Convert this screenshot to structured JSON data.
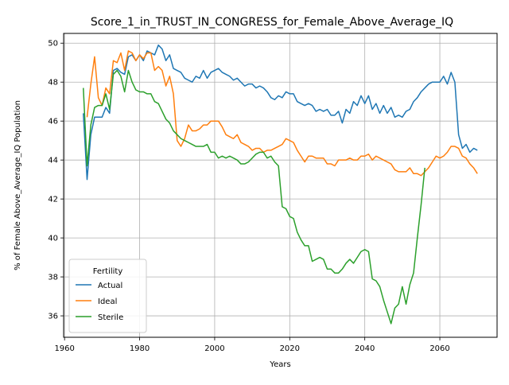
{
  "chart_data": {
    "type": "line",
    "title": "Score_1_in_TRUST_IN_CONGRESS_for_Female_Above_Average_IQ",
    "xlabel": "Years",
    "ylabel": "% of Female Above_Average_IQ Population",
    "xlim": [
      1959.75,
      2075.25
    ],
    "ylim": [
      34.9,
      50.5
    ],
    "xticks": [
      1960,
      1980,
      2000,
      2020,
      2040,
      2060
    ],
    "yticks": [
      36,
      38,
      40,
      42,
      44,
      46,
      48,
      50
    ],
    "grid": true,
    "legend": {
      "title": "Fertility",
      "placement": "lower-left"
    },
    "series": [
      {
        "name": "Actual",
        "color": "#1f77b4",
        "x": [
          1965,
          1966,
          1967,
          1968,
          1969,
          1970,
          1971,
          1972,
          1973,
          1974,
          1975,
          1976,
          1977,
          1978,
          1979,
          1980,
          1981,
          1982,
          1983,
          1984,
          1985,
          1986,
          1987,
          1988,
          1989,
          1990,
          1991,
          1992,
          1993,
          1994,
          1995,
          1996,
          1997,
          1998,
          1999,
          2000,
          2001,
          2002,
          2003,
          2004,
          2005,
          2006,
          2007,
          2008,
          2009,
          2010,
          2011,
          2012,
          2013,
          2014,
          2015,
          2016,
          2017,
          2018,
          2019,
          2020,
          2021,
          2022,
          2023,
          2024,
          2025,
          2026,
          2027,
          2028,
          2029,
          2030,
          2031,
          2032,
          2033,
          2034,
          2035,
          2036,
          2037,
          2038,
          2039,
          2040,
          2041,
          2042,
          2043,
          2044,
          2045,
          2046,
          2047,
          2048,
          2049,
          2050,
          2051,
          2052,
          2053,
          2054,
          2055,
          2056,
          2057,
          2058,
          2059,
          2060,
          2061,
          2062,
          2063,
          2064,
          2065,
          2066,
          2067,
          2068,
          2069,
          2070
        ],
        "values": [
          46.4,
          43.0,
          45.3,
          46.2,
          46.2,
          46.2,
          46.7,
          46.4,
          48.6,
          48.7,
          48.5,
          48.4,
          49.3,
          49.4,
          49.1,
          49.4,
          49.1,
          49.6,
          49.5,
          49.4,
          49.9,
          49.7,
          49.1,
          49.4,
          48.7,
          48.6,
          48.5,
          48.2,
          48.1,
          48.0,
          48.3,
          48.2,
          48.6,
          48.2,
          48.5,
          48.6,
          48.7,
          48.5,
          48.4,
          48.3,
          48.1,
          48.2,
          48.0,
          47.8,
          47.9,
          47.9,
          47.7,
          47.8,
          47.7,
          47.5,
          47.2,
          47.1,
          47.3,
          47.2,
          47.5,
          47.4,
          47.4,
          47.0,
          46.9,
          46.8,
          46.9,
          46.8,
          46.5,
          46.6,
          46.5,
          46.6,
          46.3,
          46.3,
          46.5,
          45.9,
          46.6,
          46.4,
          47.0,
          46.8,
          47.3,
          46.9,
          47.3,
          46.6,
          46.9,
          46.4,
          46.8,
          46.4,
          46.7,
          46.2,
          46.3,
          46.2,
          46.5,
          46.6,
          47.0,
          47.2,
          47.5,
          47.7,
          47.9,
          48.0,
          48.0,
          48.0,
          48.3,
          47.9,
          48.5,
          48.0,
          45.3,
          44.6,
          44.8,
          44.4,
          44.6,
          44.5
        ]
      },
      {
        "name": "Ideal",
        "color": "#ff7f0e",
        "x": [
          1966,
          1967,
          1968,
          1969,
          1970,
          1971,
          1972,
          1973,
          1974,
          1975,
          1976,
          1977,
          1978,
          1979,
          1980,
          1981,
          1982,
          1983,
          1984,
          1985,
          1986,
          1987,
          1988,
          1989,
          1990,
          1991,
          1992,
          1993,
          1994,
          1995,
          1996,
          1997,
          1998,
          1999,
          2000,
          2001,
          2002,
          2003,
          2004,
          2005,
          2006,
          2007,
          2008,
          2009,
          2010,
          2011,
          2012,
          2013,
          2014,
          2015,
          2016,
          2017,
          2018,
          2019,
          2020,
          2021,
          2022,
          2023,
          2024,
          2025,
          2026,
          2027,
          2028,
          2029,
          2030,
          2031,
          2032,
          2033,
          2034,
          2035,
          2036,
          2037,
          2038,
          2039,
          2040,
          2041,
          2042,
          2043,
          2044,
          2045,
          2046,
          2047,
          2048,
          2049,
          2050,
          2051,
          2052,
          2053,
          2054,
          2055,
          2056,
          2057,
          2058,
          2059,
          2060,
          2061,
          2062,
          2063,
          2064,
          2065,
          2066,
          2067,
          2068,
          2069,
          2070
        ],
        "values": [
          46.2,
          47.9,
          49.3,
          47.2,
          46.8,
          47.7,
          47.4,
          49.1,
          49.0,
          49.5,
          48.6,
          49.6,
          49.5,
          49.1,
          49.4,
          49.2,
          49.5,
          49.5,
          48.6,
          48.8,
          48.6,
          47.8,
          48.3,
          47.4,
          45.0,
          44.7,
          45.1,
          45.8,
          45.5,
          45.5,
          45.6,
          45.8,
          45.8,
          46.0,
          46.0,
          46.0,
          45.7,
          45.3,
          45.2,
          45.1,
          45.3,
          44.9,
          44.8,
          44.7,
          44.5,
          44.6,
          44.6,
          44.4,
          44.5,
          44.5,
          44.6,
          44.7,
          44.8,
          45.1,
          45.0,
          44.9,
          44.5,
          44.2,
          43.9,
          44.2,
          44.2,
          44.1,
          44.1,
          44.1,
          43.8,
          43.8,
          43.7,
          44.0,
          44.0,
          44.0,
          44.1,
          44.0,
          44.0,
          44.2,
          44.2,
          44.3,
          44.0,
          44.2,
          44.1,
          44.0,
          43.9,
          43.8,
          43.5,
          43.4,
          43.4,
          43.4,
          43.6,
          43.3,
          43.3,
          43.2,
          43.4,
          43.6,
          43.9,
          44.2,
          44.1,
          44.2,
          44.4,
          44.7,
          44.7,
          44.6,
          44.2,
          44.1,
          43.8,
          43.6,
          43.3
        ]
      },
      {
        "name": "Sterile",
        "color": "#2ca02c",
        "x": [
          1965,
          1966,
          1967,
          1968,
          1969,
          1970,
          1971,
          1972,
          1973,
          1974,
          1975,
          1976,
          1977,
          1978,
          1979,
          1980,
          1981,
          1982,
          1983,
          1984,
          1985,
          1986,
          1987,
          1988,
          1989,
          1990,
          1991,
          1992,
          1993,
          1994,
          1995,
          1996,
          1997,
          1998,
          1999,
          2000,
          2001,
          2002,
          2003,
          2004,
          2005,
          2006,
          2007,
          2008,
          2009,
          2010,
          2011,
          2012,
          2013,
          2014,
          2015,
          2016,
          2017,
          2018,
          2019,
          2020,
          2021,
          2022,
          2023,
          2024,
          2025,
          2026,
          2027,
          2028,
          2029,
          2030,
          2031,
          2032,
          2033,
          2034,
          2035,
          2036,
          2037,
          2038,
          2039,
          2040,
          2041,
          2042,
          2043,
          2044,
          2045,
          2046,
          2047,
          2048,
          2049,
          2050,
          2051,
          2052,
          2053,
          2054,
          2055,
          2056
        ],
        "values": [
          47.7,
          43.7,
          45.8,
          46.7,
          46.8,
          46.8,
          47.4,
          46.6,
          48.4,
          48.6,
          48.3,
          47.5,
          48.6,
          48.0,
          47.6,
          47.5,
          47.5,
          47.4,
          47.4,
          47.0,
          46.9,
          46.5,
          46.1,
          45.9,
          45.5,
          45.3,
          45.1,
          45.0,
          44.9,
          44.8,
          44.7,
          44.7,
          44.7,
          44.8,
          44.4,
          44.4,
          44.1,
          44.2,
          44.1,
          44.2,
          44.1,
          44.0,
          43.8,
          43.8,
          43.9,
          44.1,
          44.3,
          44.4,
          44.4,
          44.1,
          44.2,
          43.9,
          43.7,
          41.6,
          41.5,
          41.1,
          41.0,
          40.3,
          39.9,
          39.6,
          39.6,
          38.8,
          38.9,
          39.0,
          38.9,
          38.4,
          38.4,
          38.2,
          38.2,
          38.4,
          38.7,
          38.9,
          38.7,
          39.0,
          39.3,
          39.4,
          39.3,
          37.9,
          37.8,
          37.5,
          36.8,
          36.2,
          35.6,
          36.4,
          36.6,
          37.5,
          36.6,
          37.6,
          38.2,
          40.0,
          41.7,
          43.6
        ]
      }
    ]
  }
}
